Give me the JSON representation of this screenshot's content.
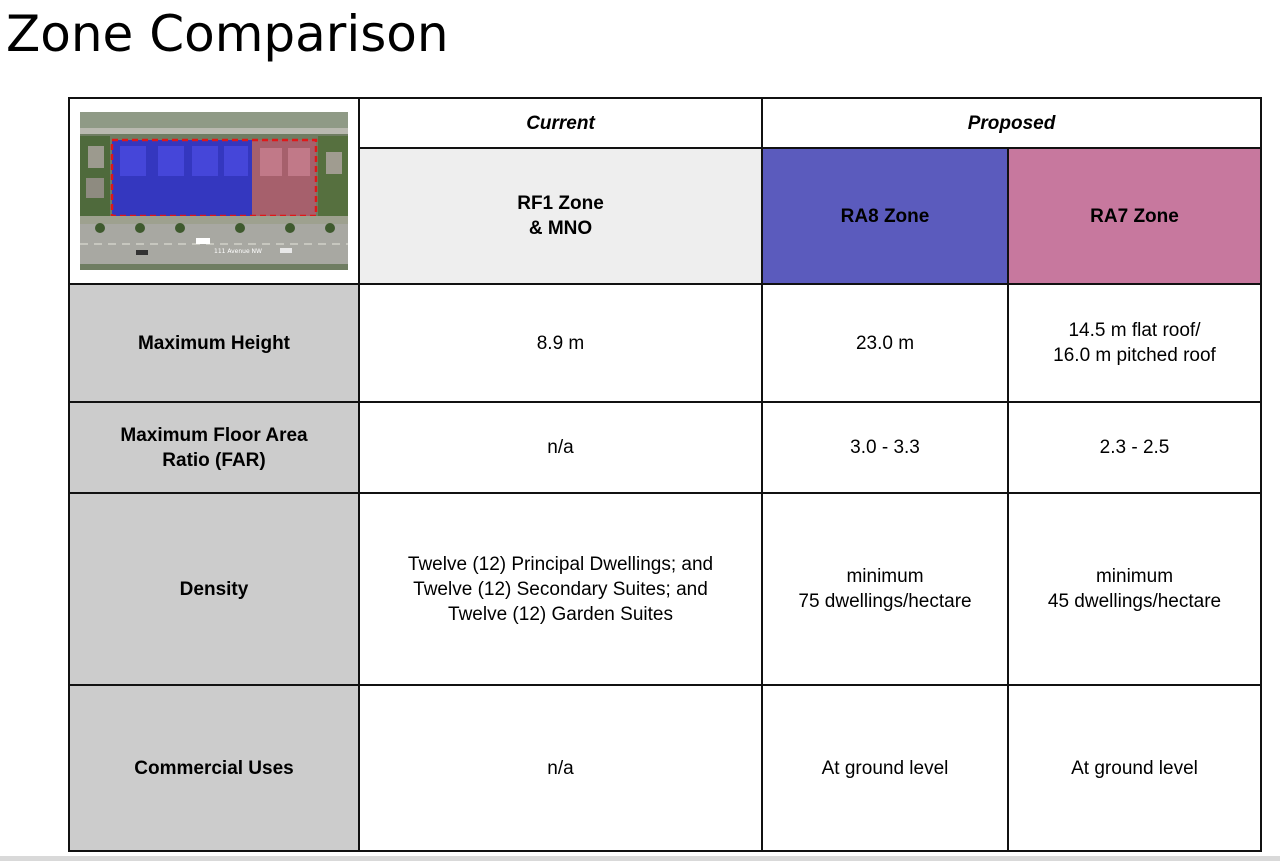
{
  "title": "Zone Comparison",
  "header": {
    "current_label": "Current",
    "proposed_label": "Proposed"
  },
  "zones": {
    "current": "RF1 Zone\n& MNO",
    "ra8": "RA8 Zone",
    "ra7": "RA7 Zone"
  },
  "colors": {
    "ra8": "#5b5bbd",
    "ra7": "#c7789e",
    "current": "#eeeeee",
    "row_label": "#cccccc"
  },
  "map": {
    "street_label": "111 Avenue NW"
  },
  "rows": [
    {
      "label": "Maximum Height",
      "current": "8.9 m",
      "ra8": "23.0 m",
      "ra7": "14.5 m flat roof/\n16.0 m pitched roof"
    },
    {
      "label": "Maximum Floor Area\nRatio (FAR)",
      "current": "n/a",
      "ra8": "3.0 - 3.3",
      "ra7": "2.3 - 2.5"
    },
    {
      "label": "Density",
      "current": "Twelve (12) Principal Dwellings;  and\nTwelve (12) Secondary Suites; and\nTwelve (12) Garden Suites",
      "ra8": "minimum\n75 dwellings/hectare",
      "ra7": "minimum\n45 dwellings/hectare"
    },
    {
      "label": "Commercial Uses",
      "current": "n/a",
      "ra8": "At ground level",
      "ra7": "At ground level"
    }
  ]
}
